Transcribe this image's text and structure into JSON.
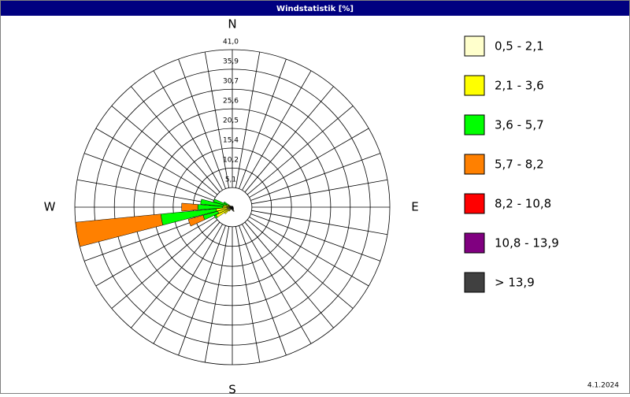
{
  "chart_data": {
    "type": "windrose",
    "title": "Windstatistik [%]",
    "footer": "4.1.2024",
    "categories": [
      "N",
      null,
      null,
      null,
      null,
      null,
      null,
      null,
      null,
      "E",
      null,
      null,
      null,
      null,
      null,
      null,
      null,
      null,
      "S",
      null,
      null,
      null,
      null,
      null,
      null,
      null,
      null,
      "W",
      null,
      null,
      null,
      null,
      null,
      null,
      null,
      null
    ],
    "ylim": [
      0,
      41
    ],
    "yticks": [
      {
        "value": 5.1,
        "label": "5,1"
      },
      {
        "value": 10.2,
        "label": "10,2"
      },
      {
        "value": 15.4,
        "label": "15,4"
      },
      {
        "value": 20.5,
        "label": "20,5"
      },
      {
        "value": 25.6,
        "label": "25,6"
      },
      {
        "value": 30.7,
        "label": "30,7"
      },
      {
        "value": 35.9,
        "label": "35,9"
      },
      {
        "value": 41,
        "label": "41,0"
      }
    ],
    "series": [
      {
        "name": "0,5 - 2,1",
        "color": "#ffffcc",
        "values": [
          0.3,
          0.3,
          0.2,
          0.2,
          0.2,
          0.2,
          0.2,
          0.2,
          0.2,
          0.3,
          0.3,
          0.3,
          0.3,
          0.4,
          0.5,
          0.6,
          1.2,
          1.0,
          0.8,
          0.6,
          0.6,
          0.7,
          0.8,
          1.0,
          1.2,
          1.4,
          1.2,
          1.0,
          0.8,
          0.6,
          0.5,
          0.4,
          0.4,
          0.3,
          0.3,
          0.3
        ]
      },
      {
        "name": "2,1 - 3,6",
        "color": "#ffff00",
        "values": [
          0,
          0,
          0,
          0,
          0,
          0,
          0,
          0,
          0,
          0,
          0,
          0,
          0,
          0,
          0,
          0,
          0,
          0,
          0,
          0,
          0,
          0,
          0.5,
          1.5,
          3.5,
          2.5,
          3,
          1.5,
          1.5,
          1,
          0.5,
          0,
          0,
          0,
          0,
          0
        ]
      },
      {
        "name": "3,6 - 5,7",
        "color": "#00ff00",
        "values": [
          0,
          0,
          0,
          0,
          0,
          0,
          0,
          0,
          0,
          0,
          0,
          0,
          0,
          0,
          0,
          0,
          0,
          0,
          0,
          0,
          0,
          0,
          0,
          0,
          0.5,
          4,
          14.5,
          6.5,
          6,
          3.5,
          1.5,
          0,
          0,
          0,
          0,
          0
        ]
      },
      {
        "name": "5,7 - 8,2",
        "color": "#ff8000",
        "values": [
          0,
          0,
          0,
          0,
          0,
          0,
          0,
          0,
          0,
          0,
          0,
          0,
          0,
          0,
          0,
          0,
          0,
          0,
          0,
          0,
          0,
          0,
          0,
          0,
          0,
          4,
          22.3,
          4.2,
          0,
          0,
          0,
          0,
          0,
          0,
          0,
          0
        ]
      },
      {
        "name": "8,2 - 10,8",
        "color": "#ff0000",
        "values": [
          0,
          0,
          0,
          0,
          0,
          0,
          0,
          0,
          0,
          0,
          0,
          0,
          0,
          0,
          0,
          0,
          0,
          0,
          0,
          0,
          0,
          0,
          0,
          0,
          0,
          0,
          0,
          0,
          0,
          0,
          0,
          0,
          0,
          0,
          0,
          0
        ]
      },
      {
        "name": "10,8 - 13,9",
        "color": "#800080",
        "values": [
          0,
          0,
          0,
          0,
          0,
          0,
          0,
          0,
          0,
          0,
          0,
          0,
          0,
          0,
          0,
          0,
          0,
          0,
          0,
          0,
          0,
          0,
          0,
          0,
          0,
          0,
          0,
          0,
          0,
          0,
          0,
          0,
          0,
          0,
          0,
          0
        ]
      },
      {
        "name": "> 13,9",
        "color": "#404040",
        "values": [
          0,
          0,
          0,
          0,
          0,
          0,
          0,
          0,
          0,
          0,
          0,
          0,
          0,
          0,
          0,
          0,
          0,
          0,
          0,
          0,
          0,
          0,
          0,
          0,
          0,
          0,
          0,
          0,
          0,
          0,
          0,
          0,
          0,
          0,
          0,
          0
        ]
      }
    ]
  }
}
